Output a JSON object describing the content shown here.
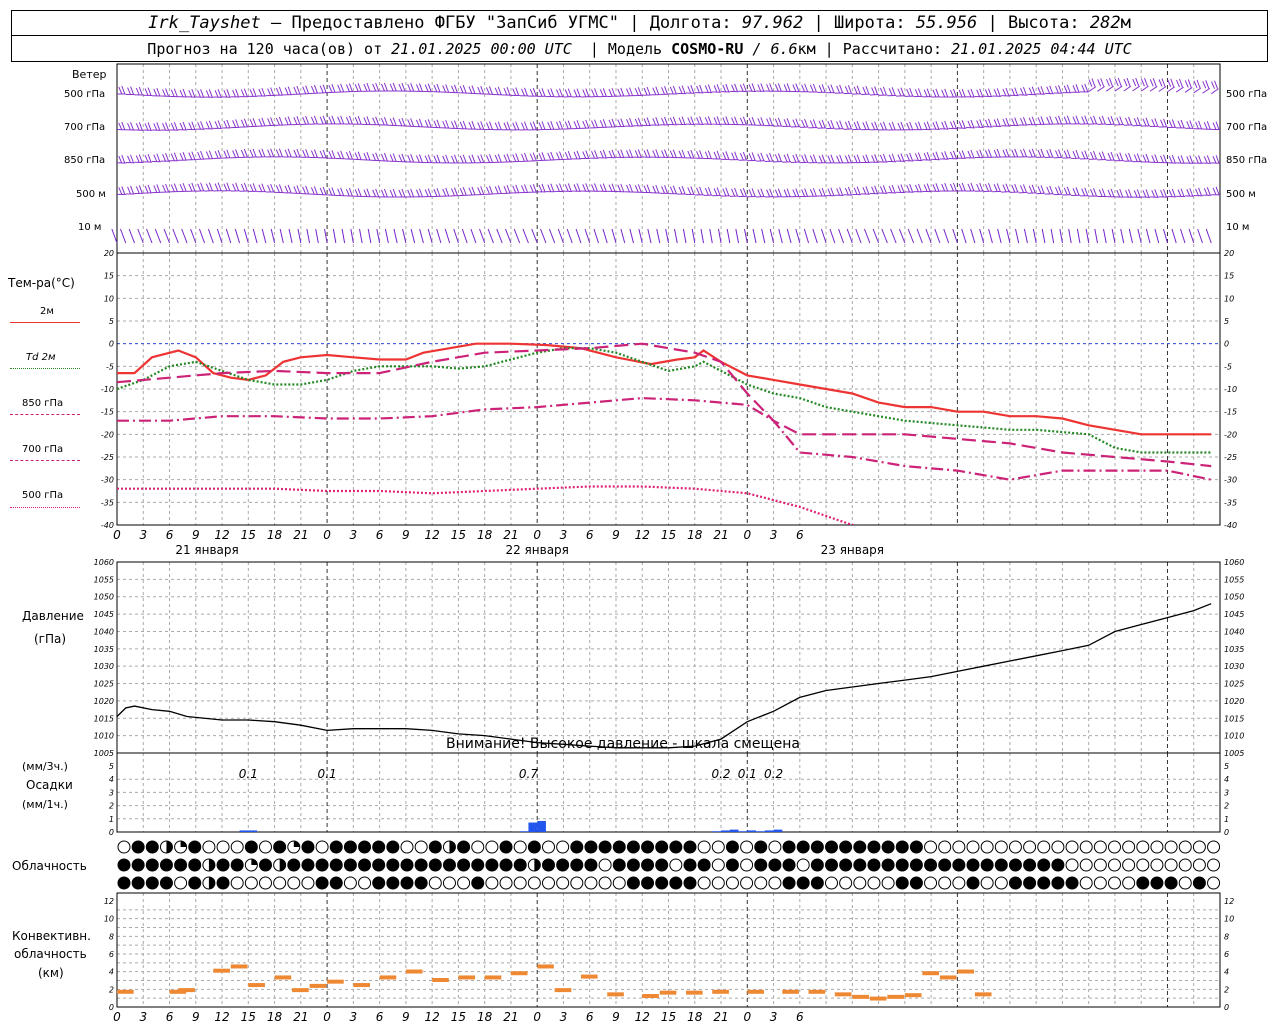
{
  "header": {
    "station": "Irk_Tayshet",
    "provider": " — Предоставлено ФГБУ \"ЗапСиб УГМС\" | Долгота: ",
    "lon": "97.962",
    "lat_label": " | Широта: ",
    "lat": "55.956",
    "alt_label": " | Высота: ",
    "alt": "282",
    "alt_unit": "м",
    "forecast_prefix": "Прогноз на 120 часа(ов) от ",
    "forecast_time": "21.01.2025 00:00 UTC",
    "model_label": "  | Модель ",
    "model": "COSMO-RU",
    "model_res": " / 6.6",
    "model_res_unit": "км",
    "calc_label": " | Рассчитано: ",
    "calc_time": "21.01.2025 04:44 UTC"
  },
  "wind_panel": {
    "title": "Ветер",
    "levels": [
      "500 гПа",
      "700 гПа",
      "850 гПа",
      "500 м",
      "10  м"
    ]
  },
  "temp_panel": {
    "title": "Тем-ра(°С)",
    "legend": [
      {
        "label": "2м",
        "color": "#ee3333",
        "style": "solid"
      },
      {
        "label": "Td  2м",
        "color": "#228822",
        "style": "dotted"
      },
      {
        "label": "850 гПа",
        "color": "#cc2277",
        "style": "longdash"
      },
      {
        "label": "700 гПа",
        "color": "#cc2277",
        "style": "dashdot"
      },
      {
        "label": "500 гПа",
        "color": "#dd2277",
        "style": "dotted"
      }
    ],
    "yticks": [
      "20",
      "15",
      "10",
      "5",
      "0",
      "-5",
      "-10",
      "-15",
      "-20",
      "-25",
      "-30",
      "-35",
      "-40"
    ]
  },
  "x_axis": {
    "hour_ticks": [
      "0",
      "3",
      "6",
      "9",
      "12",
      "15",
      "18",
      "21",
      "0",
      "3",
      "6",
      "9",
      "12",
      "15",
      "18",
      "21",
      "0",
      "3",
      "6",
      "9",
      "12",
      "15",
      "18",
      "21",
      "0",
      "3",
      "6"
    ],
    "days": [
      "21 января",
      "22 января",
      "23 января"
    ]
  },
  "pressure_panel": {
    "title": "Давление",
    "unit": "(гПа)",
    "yticks": [
      "1060",
      "1055",
      "1050",
      "1045",
      "1040",
      "1035",
      "1030",
      "1025",
      "1020",
      "1015",
      "1010",
      "1005"
    ],
    "warning": "Внимание! Высокое давление - шкала смещена"
  },
  "precip_panel": {
    "unit3": "(мм/3ч.)",
    "title": "Осадки",
    "unit1": "(мм/1ч.)",
    "yticks": [
      "5",
      "4",
      "3",
      "2",
      "1",
      "0"
    ],
    "totals": [
      {
        "hour": 15,
        "text": "0.1"
      },
      {
        "hour": 24,
        "text": "0.1"
      },
      {
        "hour": 47,
        "text": "0.7"
      },
      {
        "hour": 69,
        "text": "0.2"
      },
      {
        "hour": 72,
        "text": "0.1"
      },
      {
        "hour": 75,
        "text": "0.2"
      }
    ]
  },
  "cloud_panel": {
    "title": "Облачность"
  },
  "conv_panel": {
    "title1": "Конвективн.",
    "title2": "облачность",
    "unit": "(км)",
    "yticks": [
      "12",
      "10",
      "8",
      "6",
      "4",
      "2",
      "0"
    ]
  },
  "chart_data": [
    {
      "type": "line",
      "title": "Тем-ра(°С)",
      "x_unit": "hours since 21.01.2025 00:00 UTC",
      "ylim": [
        -40,
        20
      ],
      "series": [
        {
          "name": "2м",
          "points": [
            [
              0,
              -6.5
            ],
            [
              2,
              -6.5
            ],
            [
              4,
              -3
            ],
            [
              7,
              -1.5
            ],
            [
              9,
              -3
            ],
            [
              11,
              -6.5
            ],
            [
              13,
              -7.5
            ],
            [
              15,
              -8
            ],
            [
              17,
              -7
            ],
            [
              19,
              -4
            ],
            [
              21,
              -3
            ],
            [
              24,
              -2.5
            ],
            [
              27,
              -3
            ],
            [
              30,
              -3.5
            ],
            [
              33,
              -3.5
            ],
            [
              35,
              -2
            ],
            [
              38,
              -1
            ],
            [
              41,
              0
            ],
            [
              45,
              0
            ],
            [
              49,
              -0.3
            ],
            [
              53,
              -1
            ],
            [
              57,
              -3
            ],
            [
              61,
              -4.5
            ],
            [
              64,
              -3.5
            ],
            [
              66,
              -3
            ],
            [
              67,
              -1.5
            ],
            [
              69,
              -4
            ],
            [
              72,
              -7
            ],
            [
              75,
              -8
            ],
            [
              78,
              -9
            ],
            [
              81,
              -10
            ],
            [
              84,
              -11
            ],
            [
              87,
              -13
            ],
            [
              90,
              -14
            ],
            [
              93,
              -14
            ],
            [
              96,
              -15
            ],
            [
              99,
              -15
            ],
            [
              102,
              -16
            ],
            [
              105,
              -16
            ],
            [
              108,
              -16.5
            ],
            [
              111,
              -18
            ],
            [
              114,
              -19
            ],
            [
              117,
              -20
            ],
            [
              120,
              -20
            ],
            [
              123,
              -20
            ],
            [
              125,
              -20
            ]
          ]
        },
        {
          "name": "Td 2м",
          "points": [
            [
              0,
              -10
            ],
            [
              3,
              -8
            ],
            [
              6,
              -5
            ],
            [
              9,
              -4
            ],
            [
              12,
              -6
            ],
            [
              15,
              -8
            ],
            [
              18,
              -9
            ],
            [
              21,
              -9
            ],
            [
              24,
              -8
            ],
            [
              27,
              -6
            ],
            [
              30,
              -5
            ],
            [
              33,
              -5
            ],
            [
              36,
              -5
            ],
            [
              39,
              -5.5
            ],
            [
              42,
              -5
            ],
            [
              45,
              -3.5
            ],
            [
              48,
              -2
            ],
            [
              51,
              -1
            ],
            [
              54,
              -1
            ],
            [
              57,
              -2
            ],
            [
              60,
              -4
            ],
            [
              63,
              -6
            ],
            [
              66,
              -5
            ],
            [
              67,
              -4
            ],
            [
              69,
              -6
            ],
            [
              72,
              -9
            ],
            [
              75,
              -11
            ],
            [
              78,
              -12
            ],
            [
              81,
              -14
            ],
            [
              84,
              -15
            ],
            [
              87,
              -16
            ],
            [
              90,
              -17
            ],
            [
              93,
              -17.5
            ],
            [
              96,
              -18
            ],
            [
              99,
              -18.5
            ],
            [
              102,
              -19
            ],
            [
              105,
              -19
            ],
            [
              108,
              -19.5
            ],
            [
              111,
              -20
            ],
            [
              114,
              -23
            ],
            [
              117,
              -24
            ],
            [
              120,
              -24
            ],
            [
              123,
              -24
            ],
            [
              125,
              -24
            ]
          ]
        },
        {
          "name": "850 гПа",
          "points": [
            [
              0,
              -8.5
            ],
            [
              6,
              -7.5
            ],
            [
              12,
              -6.5
            ],
            [
              18,
              -6
            ],
            [
              24,
              -6.5
            ],
            [
              30,
              -6.5
            ],
            [
              36,
              -4
            ],
            [
              42,
              -2
            ],
            [
              48,
              -1.5
            ],
            [
              54,
              -1
            ],
            [
              60,
              0
            ],
            [
              66,
              -2
            ],
            [
              69,
              -4
            ],
            [
              72,
              -11
            ],
            [
              75,
              -17
            ],
            [
              78,
              -20
            ],
            [
              84,
              -20
            ],
            [
              90,
              -20
            ],
            [
              96,
              -21
            ],
            [
              102,
              -22
            ],
            [
              108,
              -24
            ],
            [
              114,
              -25
            ],
            [
              120,
              -26
            ],
            [
              125,
              -27
            ]
          ]
        },
        {
          "name": "700 гПа",
          "points": [
            [
              0,
              -17
            ],
            [
              6,
              -17
            ],
            [
              12,
              -16
            ],
            [
              18,
              -16
            ],
            [
              24,
              -16.5
            ],
            [
              30,
              -16.5
            ],
            [
              36,
              -16
            ],
            [
              42,
              -14.5
            ],
            [
              48,
              -14
            ],
            [
              54,
              -13
            ],
            [
              60,
              -12
            ],
            [
              66,
              -12.5
            ],
            [
              72,
              -13.5
            ],
            [
              75,
              -17
            ],
            [
              78,
              -24
            ],
            [
              84,
              -25
            ],
            [
              90,
              -27
            ],
            [
              96,
              -28
            ],
            [
              102,
              -30
            ],
            [
              108,
              -28
            ],
            [
              114,
              -28
            ],
            [
              120,
              -28
            ],
            [
              125,
              -30
            ]
          ]
        },
        {
          "name": "500 гПа",
          "points": [
            [
              0,
              -32
            ],
            [
              6,
              -32
            ],
            [
              12,
              -32
            ],
            [
              18,
              -32
            ],
            [
              24,
              -32.5
            ],
            [
              30,
              -32.5
            ],
            [
              36,
              -33
            ],
            [
              42,
              -32.5
            ],
            [
              48,
              -32
            ],
            [
              54,
              -31.5
            ],
            [
              60,
              -31.5
            ],
            [
              66,
              -32
            ],
            [
              72,
              -33
            ],
            [
              78,
              -36
            ],
            [
              84,
              -40
            ],
            [
              86,
              -41
            ]
          ]
        }
      ]
    },
    {
      "type": "line",
      "title": "Давление",
      "ylabel": "(гПа)",
      "x_unit": "hours since 21.01.2025 00:00 UTC",
      "ylim": [
        1005,
        1060
      ],
      "points": [
        [
          0,
          1015.5
        ],
        [
          1,
          1018
        ],
        [
          2,
          1018.5
        ],
        [
          4,
          1017.5
        ],
        [
          6,
          1017
        ],
        [
          8,
          1015.5
        ],
        [
          12,
          1014.5
        ],
        [
          15,
          1014.5
        ],
        [
          18,
          1014
        ],
        [
          21,
          1013
        ],
        [
          24,
          1011.5
        ],
        [
          27,
          1012
        ],
        [
          30,
          1012
        ],
        [
          33,
          1012
        ],
        [
          36,
          1011.5
        ],
        [
          39,
          1010.5
        ],
        [
          42,
          1010
        ],
        [
          45,
          1009
        ],
        [
          48,
          1008
        ],
        [
          51,
          1007.5
        ],
        [
          54,
          1007
        ],
        [
          57,
          1006.5
        ],
        [
          60,
          1006.5
        ],
        [
          63,
          1006.5
        ],
        [
          66,
          1007
        ],
        [
          69,
          1009
        ],
        [
          72,
          1014
        ],
        [
          75,
          1017
        ],
        [
          78,
          1021
        ],
        [
          81,
          1023
        ],
        [
          84,
          1024
        ],
        [
          87,
          1025
        ],
        [
          90,
          1026
        ],
        [
          93,
          1027
        ],
        [
          96,
          1028.5
        ],
        [
          99,
          1030
        ],
        [
          102,
          1031.5
        ],
        [
          105,
          1033
        ],
        [
          108,
          1034.5
        ],
        [
          111,
          1036
        ],
        [
          114,
          1040
        ],
        [
          117,
          1042
        ],
        [
          120,
          1044
        ],
        [
          123,
          1046
        ],
        [
          125,
          1048
        ]
      ]
    },
    {
      "type": "bar",
      "title": "Осадки",
      "ylabel": "(мм/1ч.)",
      "ylim": [
        0,
        5
      ],
      "x": [
        14,
        15,
        46,
        47,
        48,
        68,
        69,
        70,
        71,
        72,
        73,
        74,
        75
      ],
      "values": [
        0.1,
        0.1,
        0.05,
        0.6,
        0.7,
        0.05,
        0.1,
        0.15,
        0.05,
        0.1,
        0.05,
        0.1,
        0.15
      ]
    },
    {
      "type": "bar",
      "title": "Конвективн. облачность (км)",
      "ylim": [
        0,
        13
      ],
      "bases": [
        [
          0,
          1.8
        ],
        [
          6,
          1.8
        ],
        [
          7,
          2.0
        ],
        [
          11,
          4.3
        ],
        [
          13,
          4.8
        ],
        [
          15,
          2.6
        ],
        [
          18,
          3.5
        ],
        [
          20,
          2.0
        ],
        [
          22,
          2.5
        ],
        [
          24,
          3.0
        ],
        [
          27,
          2.6
        ],
        [
          30,
          3.5
        ],
        [
          33,
          4.2
        ],
        [
          36,
          3.2
        ],
        [
          39,
          3.5
        ],
        [
          42,
          3.5
        ],
        [
          45,
          4.0
        ],
        [
          48,
          4.8
        ],
        [
          50,
          2.0
        ],
        [
          53,
          3.6
        ],
        [
          56,
          1.5
        ],
        [
          60,
          1.3
        ],
        [
          62,
          1.7
        ],
        [
          65,
          1.7
        ],
        [
          68,
          1.8
        ],
        [
          72,
          1.8
        ],
        [
          76,
          1.8
        ],
        [
          79,
          1.8
        ],
        [
          82,
          1.5
        ],
        [
          84,
          1.2
        ],
        [
          86,
          1.0
        ],
        [
          88,
          1.2
        ],
        [
          90,
          1.4
        ],
        [
          92,
          4.0
        ],
        [
          94,
          3.5
        ],
        [
          96,
          4.2
        ],
        [
          98,
          1.5
        ]
      ]
    }
  ]
}
